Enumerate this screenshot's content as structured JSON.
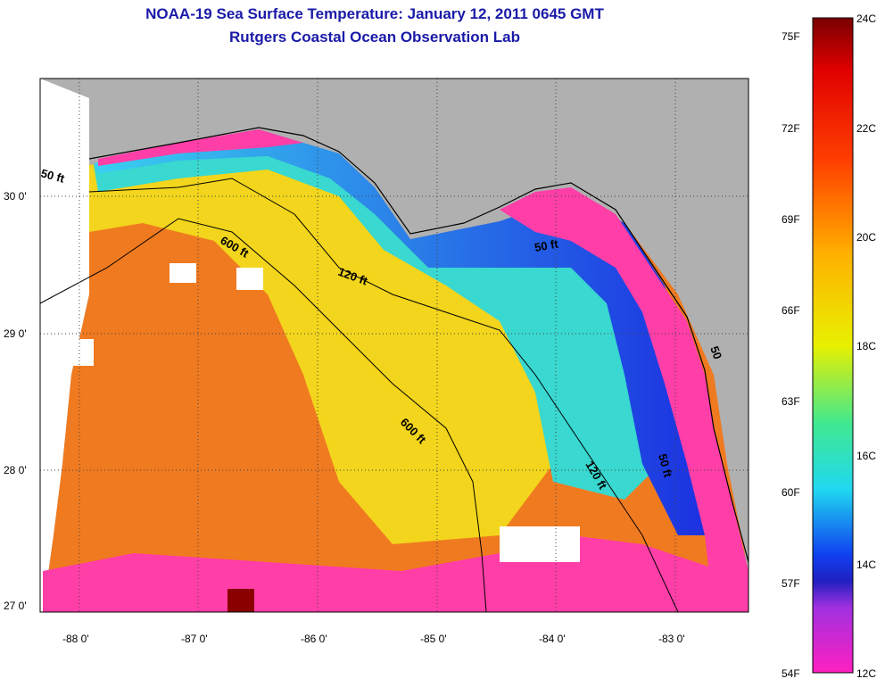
{
  "title": "NOAA-19 Sea Surface Temperature:  January 12, 2011 0645 GMT",
  "subtitle": "Rutgers Coastal Ocean Observation Lab",
  "axes": {
    "x_ticks": [
      "-88 0'",
      "-87 0'",
      "-86 0'",
      "-85 0'",
      "-84 0'",
      "-83 0'"
    ],
    "y_ticks": [
      "30 0'",
      "29 0'",
      "28 0'",
      "27 0'"
    ],
    "grid": "dotted"
  },
  "contour_labels": [
    "50 ft",
    "600 ft",
    "120 ft",
    "50 ft",
    "600 ft",
    "120 ft",
    "50 ft",
    "50"
  ],
  "colorbar": {
    "fahrenheit_labels": [
      "75F",
      "72F",
      "69F",
      "66F",
      "63F",
      "60F",
      "57F",
      "54F"
    ],
    "celsius_labels": [
      "24C",
      "22C",
      "20C",
      "18C",
      "16C",
      "14C",
      "12C"
    ],
    "range_celsius": [
      12,
      24
    ],
    "range_fahrenheit": [
      54,
      75
    ]
  },
  "colors": {
    "land": "#b0b0b0",
    "cloud": "#ffffff",
    "title": "#1a1aa8"
  }
}
